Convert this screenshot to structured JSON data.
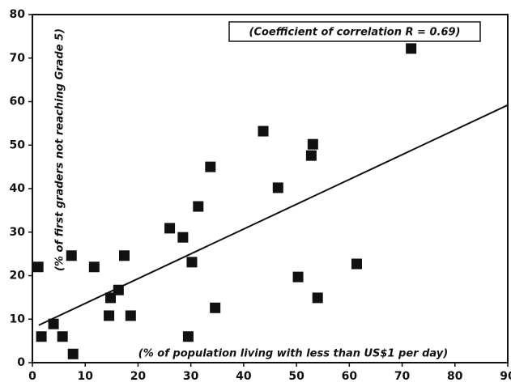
{
  "chart_data": {
    "type": "scatter",
    "annotation": "(Coefficient of correlation  R = 0.69)",
    "x_label": "(% of population living with less than US$1 per day)",
    "y_label": "(% of first graders not reaching Grade 5)",
    "xlim": [
      0,
      90
    ],
    "ylim": [
      0,
      80
    ],
    "xticks": [
      0,
      10,
      20,
      30,
      40,
      50,
      60,
      70,
      80,
      90
    ],
    "yticks": [
      0,
      10,
      20,
      30,
      40,
      50,
      60,
      70,
      80
    ],
    "color": "#111111",
    "x": [
      1.1,
      1.7,
      4,
      5.7,
      7.4,
      7.7,
      11.7,
      14.5,
      14.8,
      16.3,
      17.4,
      18.6,
      26,
      28.5,
      29.5,
      30.2,
      31.4,
      33.7,
      34.6,
      43.7,
      46.5,
      50.3,
      52.8,
      53.1,
      54,
      61.4,
      71.7
    ],
    "y": [
      22,
      6,
      8.9,
      6,
      24.6,
      2,
      22,
      10.8,
      14.9,
      16.7,
      24.6,
      10.8,
      30.9,
      28.8,
      6,
      23.1,
      35.9,
      45,
      12.6,
      53.2,
      40.2,
      19.7,
      47.6,
      50.2,
      14.9,
      22.7,
      72.2
    ],
    "trendline": {
      "x": [
        1.2,
        90
      ],
      "y": [
        8.6,
        59.2
      ]
    }
  }
}
